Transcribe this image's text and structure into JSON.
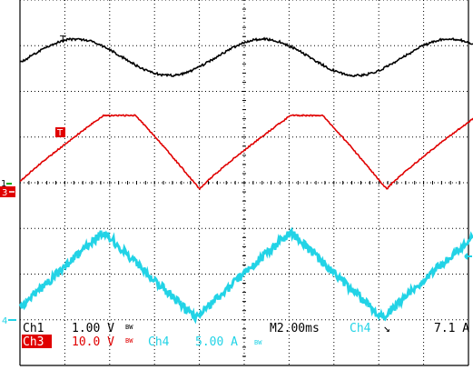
{
  "scope": {
    "colors": {
      "background": "#ffffff",
      "grid": "#000000",
      "ch1": "#000000",
      "ch3": "#e00000",
      "ch4": "#22d3e6"
    },
    "markers": {
      "ch1_marker": "1",
      "ch3_marker": "3",
      "ch4_marker": "4",
      "trigger_marker": "T",
      "ch3_trigger_marker": "T"
    },
    "readout": {
      "ch1_label": "Ch1",
      "ch1_scale": "1.00 V",
      "ch1_bw": "BW",
      "ch3_label": "Ch3",
      "ch3_scale": "10.0 V",
      "ch3_bw": "BW",
      "ch4_label": "Ch4",
      "ch4_scale": "5.00 A",
      "ch4_bw": "BW",
      "timebase": "M2.00ms",
      "trigger_source": "Ch4",
      "trigger_slope": "↘",
      "trigger_level": "7.1 A"
    }
  }
}
